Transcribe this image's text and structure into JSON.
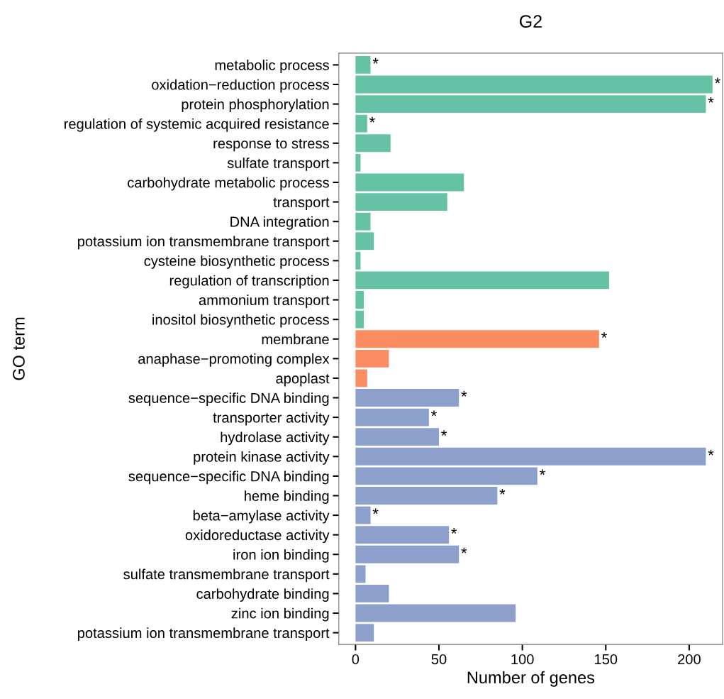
{
  "chart_data": {
    "type": "bar",
    "orientation": "horizontal",
    "title": "G2",
    "xlabel": "Number of genes",
    "ylabel": "GO term",
    "categories": [
      "metabolic process",
      "oxidation−reduction process",
      "protein phosphorylation",
      "regulation of systemic acquired resistance",
      "response to stress",
      "sulfate transport",
      "carbohydrate metabolic process",
      "transport",
      "DNA integration",
      "potassium ion transmembrane transport",
      "cysteine biosynthetic process",
      "regulation of transcription",
      "ammonium transport",
      "inositol biosynthetic process",
      "membrane",
      "anaphase−promoting complex",
      "apoplast",
      "sequence−specific DNA binding",
      "transporter activity",
      "hydrolase activity",
      "protein kinase activity",
      "sequence−specific DNA binding",
      "heme binding",
      "beta−amylase activity",
      "oxidoreductase activity",
      "iron ion binding",
      "sulfate transmembrane transport",
      "carbohydrate binding",
      "zinc ion binding",
      "potassium ion transmembrane transport"
    ],
    "values": [
      9,
      214,
      210,
      7,
      21,
      3,
      65,
      55,
      9,
      11,
      3,
      152,
      5,
      5,
      146,
      20,
      7,
      62,
      44,
      50,
      210,
      109,
      85,
      9,
      56,
      62,
      6,
      20,
      96,
      11
    ],
    "value_labels": [
      "*",
      "*",
      "*",
      "*",
      null,
      null,
      null,
      null,
      null,
      null,
      null,
      null,
      null,
      null,
      "*",
      null,
      null,
      "*",
      "*",
      "*",
      "*",
      "*",
      "*",
      "*",
      "*",
      "*",
      null,
      null,
      null,
      null
    ],
    "colors": [
      "#66c2a5",
      "#66c2a5",
      "#66c2a5",
      "#66c2a5",
      "#66c2a5",
      "#66c2a5",
      "#66c2a5",
      "#66c2a5",
      "#66c2a5",
      "#66c2a5",
      "#66c2a5",
      "#66c2a5",
      "#66c2a5",
      "#66c2a5",
      "#fc8d62",
      "#fc8d62",
      "#fc8d62",
      "#8da0cb",
      "#8da0cb",
      "#8da0cb",
      "#8da0cb",
      "#8da0cb",
      "#8da0cb",
      "#8da0cb",
      "#8da0cb",
      "#8da0cb",
      "#8da0cb",
      "#8da0cb",
      "#8da0cb",
      "#8da0cb"
    ],
    "xlim": [
      -10,
      220
    ],
    "xticks": [
      0,
      50,
      100,
      150,
      200
    ],
    "grid": false,
    "legend": false
  }
}
